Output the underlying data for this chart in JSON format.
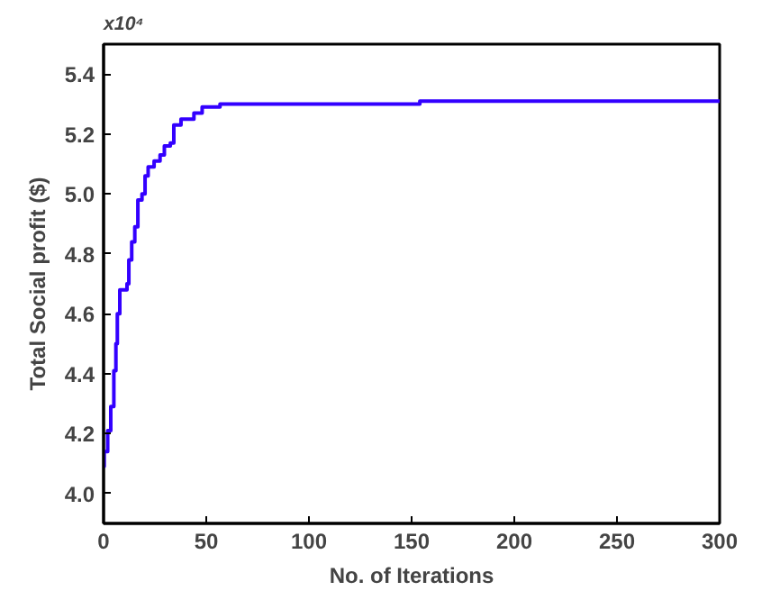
{
  "chart_data": {
    "type": "step",
    "xlabel": "No. of Iterations",
    "ylabel": "Total Social profit ($)",
    "annotations": [
      "x10⁴"
    ],
    "x": [
      0,
      0.3,
      2,
      2,
      3.5,
      5,
      6,
      6.7,
      7.9,
      11.4,
      12.3,
      13.7,
      15.2,
      16.7,
      18.7,
      20.2,
      21.7,
      24.6,
      27.5,
      29.6,
      32.5,
      34.2,
      37.7,
      42,
      44,
      48,
      56.7,
      154,
      300
    ],
    "series": [
      {
        "color": "#3300ff",
        "values": [
          4.09,
          4.14,
          4.14,
          4.21,
          4.29,
          4.41,
          4.5,
          4.6,
          4.68,
          4.7,
          4.78,
          4.84,
          4.89,
          4.98,
          5.0,
          5.06,
          5.09,
          5.11,
          5.13,
          5.16,
          5.17,
          5.23,
          5.25,
          5.25,
          5.27,
          5.29,
          5.3,
          5.31,
          5.31
        ]
      }
    ],
    "xlim": [
      0,
      300
    ],
    "xticks": [
      0,
      50,
      100,
      150,
      200,
      250,
      300
    ],
    "ylim": [
      3.9,
      5.5
    ],
    "yticks": [
      {
        "value": 4,
        "label": "4.0"
      },
      4.2,
      4.4,
      4.6,
      4.8,
      {
        "value": 5,
        "label": "5.0"
      },
      5.2,
      5.4
    ],
    "grid": false,
    "marker": "none",
    "line_style": "solid"
  }
}
